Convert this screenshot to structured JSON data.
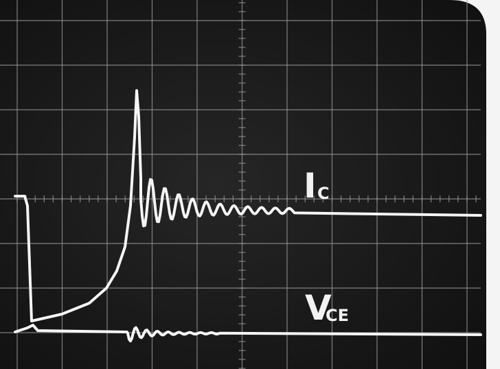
{
  "traces": [
    {
      "label": "I",
      "subscript": "C"
    },
    {
      "label": "V",
      "subscript": "CE"
    }
  ]
}
